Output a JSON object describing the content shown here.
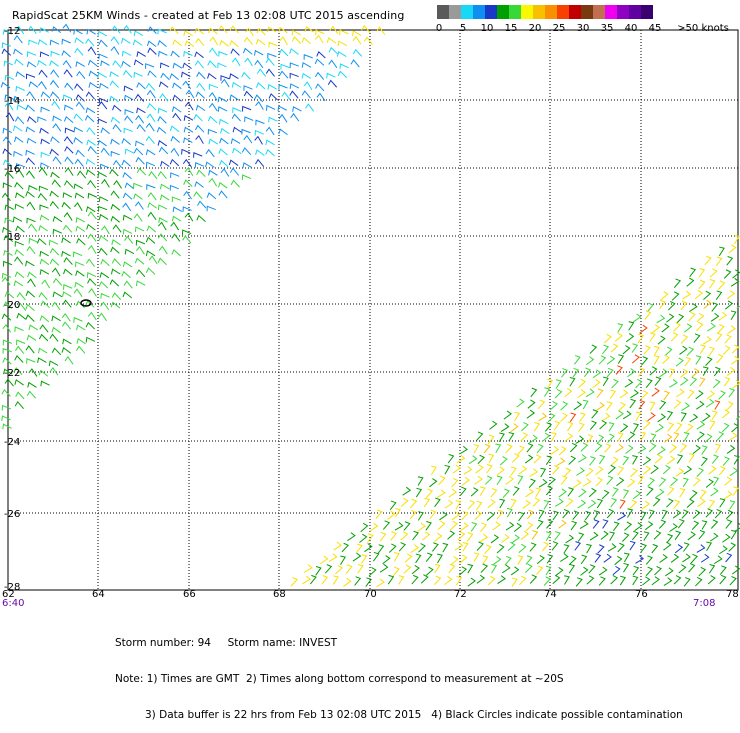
{
  "title": "RapidScat 25KM Winds - created at Feb 13 02:08 UTC 2015 ascending",
  "legend": {
    "colors": [
      "#5a5a5a",
      "#9a9a9a",
      "#18d8f8",
      "#0f90f0",
      "#1838c8",
      "#00a000",
      "#38d838",
      "#f8f800",
      "#f8c000",
      "#f89000",
      "#f84000",
      "#c00000",
      "#7a3a10",
      "#c07050",
      "#f000f0",
      "#9000c0",
      "#6000a0",
      "#3a0070"
    ],
    "labels": [
      "0",
      "5",
      "10",
      "15",
      "20",
      "25",
      "30",
      "35",
      "40",
      "45",
      ">50 knots"
    ]
  },
  "map": {
    "lat_labels": [
      "-12",
      "-14",
      "-16",
      "-18",
      "-20",
      "-22",
      "-24",
      "-26",
      "-28"
    ],
    "lon_labels": [
      "62",
      "64",
      "66",
      "68",
      "70",
      "72",
      "74",
      "76",
      "78"
    ],
    "time_left": "6:40",
    "time_right": "7:08",
    "contamination_circle": "black circle",
    "swaths": [
      {
        "name": "swath-north-west",
        "dominant_speeds_knots": [
          10,
          15,
          20,
          25
        ]
      },
      {
        "name": "swath-south-east",
        "dominant_speeds_knots": [
          20,
          25,
          30
        ]
      }
    ]
  },
  "footer": {
    "line1": "Storm number: 94     Storm name: INVEST",
    "line2": "Note: 1) Times are GMT  2) Times along bottom correspond to measurement at ~20S",
    "line3": "3) Data buffer is 22 hrs from Feb 13 02:08 UTC 2015   4) Black Circles indicate possible contamination"
  }
}
